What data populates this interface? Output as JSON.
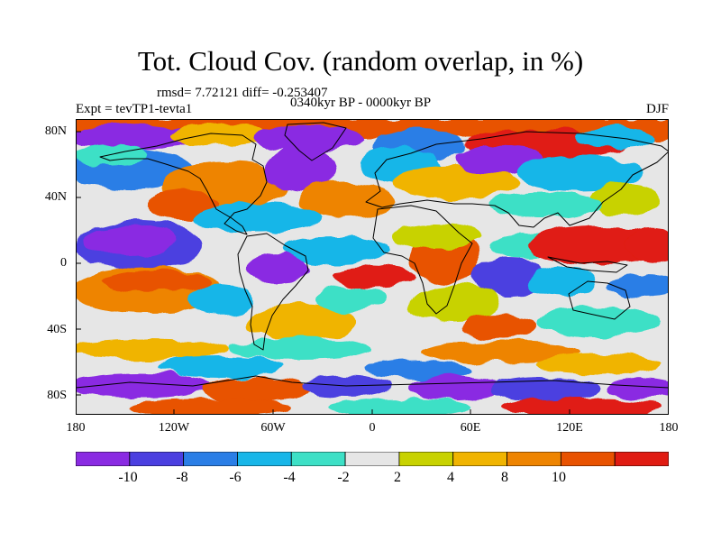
{
  "plot": {
    "title": "Tot. Cloud Cov. (random overlap, in %)",
    "stats": "rmsd= 7.72121 diff= -0.253407",
    "period": "0340kyr BP - 0000kyr BP",
    "experiment": "Expt = tevTP1-tevta1",
    "season": "DJF"
  },
  "axes": {
    "y_ticks": [
      "80N",
      "40N",
      "0",
      "40S",
      "80S"
    ],
    "x_ticks": [
      "180",
      "120W",
      "60W",
      "0",
      "60E",
      "120E",
      "180"
    ]
  },
  "colorbar": {
    "colors": [
      "#8a2be2",
      "#4b3fe0",
      "#2a7ee6",
      "#18b6e8",
      "#3de0c6",
      "#e6e6e6",
      "#c8d200",
      "#f0b400",
      "#ee8400",
      "#e85200",
      "#e01b12"
    ],
    "labels": [
      "-10",
      "-8",
      "-6",
      "-4",
      "-2",
      "2",
      "4",
      "8",
      "10"
    ]
  }
}
